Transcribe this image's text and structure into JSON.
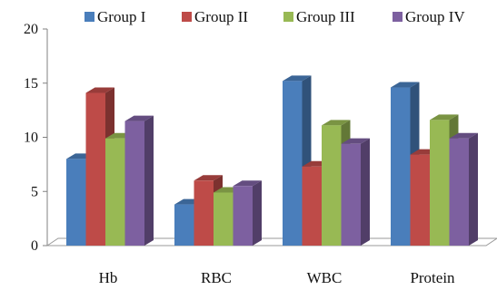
{
  "chart_data": {
    "type": "bar",
    "style": "3d-clustered",
    "categories": [
      "Hb",
      "RBC",
      "WBC",
      "Protein"
    ],
    "series": [
      {
        "name": "Group I",
        "color": "#4a7ebb",
        "values": [
          8.0,
          3.8,
          15.2,
          14.6
        ]
      },
      {
        "name": "Group II",
        "color": "#be4b48",
        "values": [
          14.1,
          6.0,
          7.3,
          8.4
        ]
      },
      {
        "name": "Group III",
        "color": "#98b954",
        "values": [
          9.9,
          4.9,
          11.1,
          11.6
        ]
      },
      {
        "name": "Group IV",
        "color": "#7d60a0",
        "values": [
          11.5,
          5.5,
          9.4,
          9.9
        ]
      }
    ],
    "y_ticks": [
      0,
      5,
      10,
      15,
      20
    ],
    "ylim": [
      0,
      20
    ],
    "title": "",
    "xlabel": "",
    "ylabel": "",
    "legend_position": "top",
    "grid": false
  }
}
